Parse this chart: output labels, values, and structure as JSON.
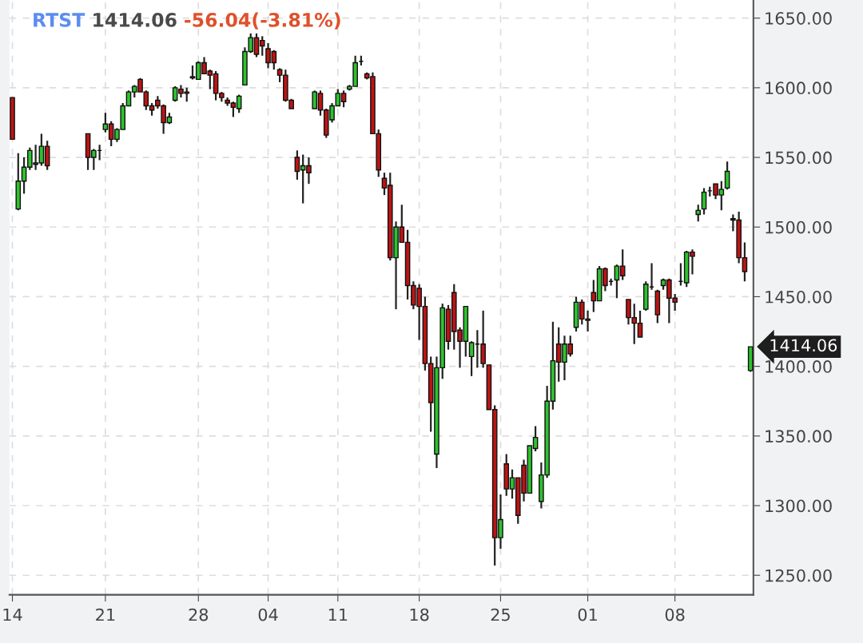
{
  "chart_data": {
    "type": "candlestick",
    "title": "RTST",
    "annotations": [
      "1414.06",
      "-56.04(-3.81%)",
      "1414.06"
    ],
    "categories": [
      "14",
      null,
      null,
      null,
      null,
      null,
      null,
      null,
      null,
      null,
      null,
      null,
      null,
      null,
      null,
      null,
      "21",
      null,
      null,
      null,
      null,
      null,
      null,
      null,
      null,
      null,
      null,
      null,
      null,
      null,
      null,
      null,
      "28",
      null,
      null,
      null,
      null,
      null,
      null,
      null,
      null,
      null,
      null,
      null,
      "04",
      null,
      null,
      null,
      null,
      null,
      null,
      null,
      null,
      null,
      null,
      null,
      "11",
      null,
      null,
      null,
      null,
      null,
      null,
      null,
      null,
      null,
      null,
      null,
      null,
      null,
      "18",
      null,
      null,
      null,
      null,
      null,
      null,
      null,
      null,
      null,
      null,
      null,
      null,
      null,
      "25",
      null,
      null,
      null,
      null,
      null,
      null,
      null,
      null,
      null,
      null,
      null,
      null,
      null,
      null,
      "01",
      null,
      null,
      null,
      null,
      null,
      null,
      null,
      null,
      null,
      null,
      null,
      null,
      null,
      null,
      "08",
      null,
      null,
      null,
      null,
      null,
      null,
      null,
      null,
      null,
      null,
      null,
      null,
      null
    ],
    "ohlc": [
      [
        1593,
        1593,
        1563,
        1563
      ],
      [
        1513,
        1553,
        1512,
        1533
      ],
      [
        1533,
        1550,
        1524,
        1543
      ],
      [
        1543,
        1557,
        1541,
        1555
      ],
      [
        1545,
        1559,
        1541,
        1546
      ],
      [
        1546,
        1567,
        1544,
        1558
      ],
      [
        1558,
        1562,
        1541,
        1544
      ],
      null,
      null,
      null,
      null,
      null,
      null,
      [
        1567,
        1567,
        1541,
        1550
      ],
      [
        1550,
        1556,
        1541,
        1555
      ],
      [
        1555,
        1559,
        1548,
        1555
      ],
      [
        1570,
        1582,
        1568,
        1574
      ],
      [
        1574,
        1576,
        1558,
        1563
      ],
      [
        1563,
        1571,
        1561,
        1570
      ],
      [
        1570,
        1589,
        1570,
        1587
      ],
      [
        1587,
        1598,
        1587,
        1597
      ],
      [
        1597,
        1602,
        1593,
        1601
      ],
      [
        1606,
        1607,
        1597,
        1597
      ],
      [
        1597,
        1598,
        1584,
        1587
      ],
      [
        1587,
        1589,
        1580,
        1584
      ],
      [
        1591,
        1594,
        1585,
        1587
      ],
      [
        1587,
        1588,
        1567,
        1575
      ],
      [
        1575,
        1582,
        1574,
        1579
      ],
      [
        1591,
        1601,
        1590,
        1600
      ],
      [
        1599,
        1602,
        1593,
        1596
      ],
      [
        1597,
        1600,
        1590,
        1596
      ],
      [
        1608,
        1616,
        1606,
        1607
      ],
      [
        1606,
        1619,
        1606,
        1618
      ],
      [
        1618,
        1622,
        1610,
        1610
      ],
      [
        1612,
        1613,
        1599,
        1609
      ],
      [
        1610,
        1612,
        1591,
        1596
      ],
      [
        1596,
        1597,
        1590,
        1593
      ],
      [
        1591,
        1593,
        1587,
        1589
      ],
      [
        1589,
        1590,
        1579,
        1586
      ],
      [
        1585,
        1595,
        1582,
        1594
      ],
      [
        1602,
        1629,
        1602,
        1626
      ],
      [
        1626,
        1639,
        1625,
        1636
      ],
      [
        1636,
        1639,
        1622,
        1624
      ],
      [
        1634,
        1637,
        1623,
        1630
      ],
      [
        1628,
        1632,
        1614,
        1618
      ],
      [
        1626,
        1627,
        1613,
        1618
      ],
      [
        1613,
        1614,
        1604,
        1609
      ],
      [
        1609,
        1613,
        1590,
        1591
      ],
      [
        1591,
        1592,
        1585,
        1585
      ],
      [
        1550,
        1555,
        1534,
        1540
      ],
      [
        1541,
        1552,
        1517,
        1544
      ],
      [
        1544,
        1550,
        1531,
        1539
      ],
      [
        1585,
        1598,
        1585,
        1597
      ],
      [
        1596,
        1598,
        1580,
        1584
      ],
      [
        1584,
        1585,
        1564,
        1566
      ],
      [
        1577,
        1589,
        1575,
        1587
      ],
      [
        1587,
        1599,
        1587,
        1596
      ],
      [
        1596,
        1598,
        1586,
        1590
      ],
      [
        1599,
        1602,
        1598,
        1601
      ],
      [
        1601,
        1623,
        1601,
        1618
      ],
      [
        1619,
        1623,
        1616,
        1619
      ],
      [
        1610,
        1611,
        1606,
        1607
      ],
      [
        1608,
        1611,
        1567,
        1567
      ],
      [
        1567,
        1570,
        1536,
        1541
      ],
      [
        1535,
        1539,
        1523,
        1528
      ],
      [
        1530,
        1539,
        1476,
        1478
      ],
      [
        1478,
        1504,
        1441,
        1500
      ],
      [
        1500,
        1516,
        1489,
        1489
      ],
      [
        1489,
        1498,
        1448,
        1458
      ],
      [
        1458,
        1461,
        1441,
        1444
      ],
      [
        1456,
        1459,
        1419,
        1443
      ],
      [
        1443,
        1450,
        1397,
        1402
      ],
      [
        1402,
        1407,
        1353,
        1374
      ],
      [
        1337,
        1407,
        1327,
        1399
      ],
      [
        1399,
        1445,
        1391,
        1442
      ],
      [
        1441,
        1444,
        1412,
        1418
      ],
      [
        1453,
        1459,
        1412,
        1425
      ],
      [
        1426,
        1428,
        1399,
        1418
      ],
      [
        1418,
        1443,
        1407,
        1443
      ],
      [
        1407,
        1418,
        1393,
        1417
      ],
      [
        1416,
        1426,
        1399,
        1416
      ],
      [
        1416,
        1440,
        1399,
        1402
      ],
      [
        1401,
        1401,
        1369,
        1369
      ],
      [
        1369,
        1372,
        1257,
        1277
      ],
      [
        1277,
        1308,
        1269,
        1290
      ],
      [
        1330,
        1337,
        1307,
        1312
      ],
      [
        1312,
        1326,
        1305,
        1320
      ],
      [
        1320,
        1320,
        1287,
        1293
      ],
      [
        1329,
        1333,
        1303,
        1309
      ],
      [
        1309,
        1343,
        1309,
        1343
      ],
      [
        1341,
        1357,
        1339,
        1349
      ],
      [
        1303,
        1331,
        1298,
        1322
      ],
      [
        1322,
        1386,
        1320,
        1375
      ],
      [
        1375,
        1432,
        1369,
        1404
      ],
      [
        1416,
        1428,
        1389,
        1403
      ],
      [
        1403,
        1422,
        1390,
        1416
      ],
      [
        1416,
        1422,
        1407,
        1409
      ],
      [
        1428,
        1450,
        1425,
        1446
      ],
      [
        1446,
        1448,
        1430,
        1434
      ],
      [
        1434,
        1440,
        1425,
        1433
      ],
      [
        1453,
        1462,
        1439,
        1447
      ],
      [
        1447,
        1472,
        1447,
        1470
      ],
      [
        1470,
        1471,
        1454,
        1458
      ],
      [
        1461,
        1463,
        1458,
        1461
      ],
      [
        1462,
        1473,
        1449,
        1472
      ],
      [
        1472,
        1484,
        1462,
        1465
      ],
      [
        1448,
        1448,
        1430,
        1435
      ],
      [
        1435,
        1445,
        1416,
        1431
      ],
      [
        1431,
        1440,
        1421,
        1421
      ],
      [
        1441,
        1461,
        1440,
        1459
      ],
      [
        1457,
        1474,
        1455,
        1457
      ],
      [
        1454,
        1455,
        1431,
        1437
      ],
      [
        1458,
        1463,
        1455,
        1462
      ],
      [
        1462,
        1463,
        1431,
        1449
      ],
      [
        1449,
        1452,
        1440,
        1446
      ],
      [
        1461,
        1474,
        1458,
        1461
      ],
      [
        1460,
        1483,
        1457,
        1482
      ],
      [
        1482,
        1484,
        1466,
        1479
      ],
      [
        1509,
        1516,
        1504,
        1512
      ],
      [
        1513,
        1528,
        1509,
        1525
      ],
      [
        1526,
        1529,
        1522,
        1526
      ],
      [
        1531,
        1531,
        1520,
        1523
      ],
      [
        1523,
        1533,
        1512,
        1527
      ],
      [
        1528,
        1547,
        1527,
        1540
      ],
      [
        1506,
        1509,
        1497,
        1505
      ],
      [
        1505,
        1511,
        1474,
        1478
      ],
      [
        1478,
        1489,
        1461,
        1468
      ],
      [
        1397,
        1414.06,
        1396,
        1414.06
      ]
    ],
    "ylim": [
      1236,
      1663
    ],
    "yticks": [
      {
        "value": 1250,
        "label": "1250.00"
      },
      {
        "value": 1300,
        "label": "1300.00"
      },
      {
        "value": 1350,
        "label": "1350.00"
      },
      {
        "value": 1400,
        "label": "1400.00"
      },
      {
        "value": 1450,
        "label": "1450.00"
      },
      {
        "value": 1500,
        "label": "1500.00"
      },
      {
        "value": 1550,
        "label": "1550.00"
      },
      {
        "value": 1600,
        "label": "1600.00"
      },
      {
        "value": 1650,
        "label": "1650.00"
      }
    ],
    "grid": true
  }
}
